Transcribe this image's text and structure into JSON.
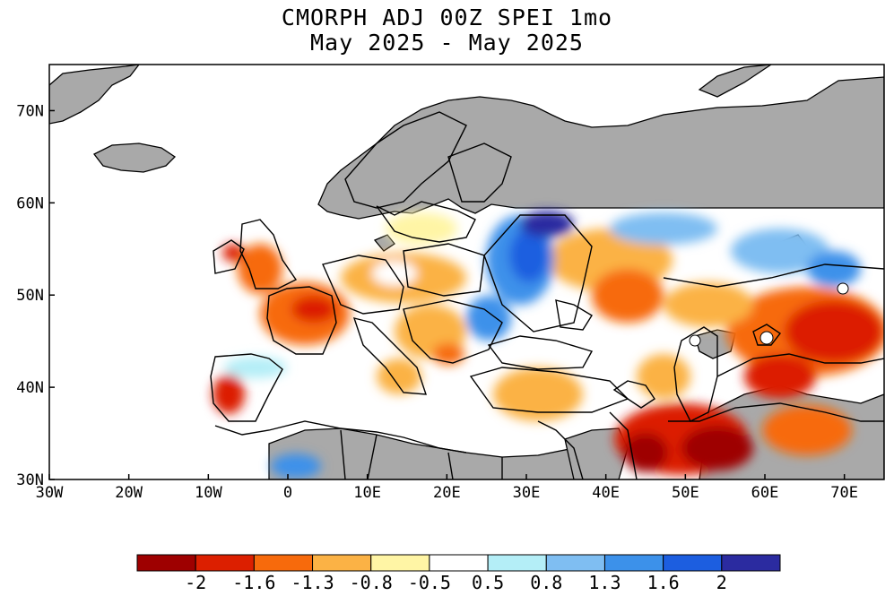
{
  "title": {
    "line1": "CMORPH ADJ 00Z SPEI 1mo",
    "line2": "May 2025 - May 2025"
  },
  "map": {
    "lon_range": [
      -30,
      75
    ],
    "lat_range": [
      30,
      75
    ],
    "lon_ticks": [
      "30W",
      "20W",
      "10W",
      "0",
      "10E",
      "20E",
      "30E",
      "40E",
      "50E",
      "60E",
      "70E"
    ],
    "lat_ticks": [
      "30N",
      "40N",
      "50N",
      "60N",
      "70N"
    ],
    "colors": {
      "no_data": "#a9a9a9",
      "ocean": "#ffffff",
      "borders": "#000000"
    }
  },
  "colorbar": {
    "labels": [
      "-2",
      "-1.6",
      "-1.3",
      "-0.8",
      "-0.5",
      "0.5",
      "0.8",
      "1.3",
      "1.6",
      "2"
    ],
    "colors": [
      "#9e0000",
      "#dc1f00",
      "#f76a0c",
      "#fbb245",
      "#fff5a5",
      "#ffffff",
      "#b4eef7",
      "#7fbef2",
      "#3c91ea",
      "#1c5ee0",
      "#2b2ba0"
    ]
  }
}
